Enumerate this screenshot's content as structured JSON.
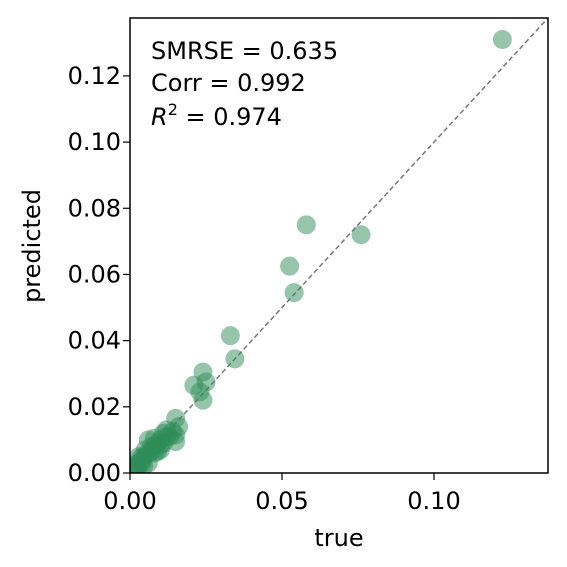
{
  "chart_data": {
    "type": "scatter",
    "xlabel": "true",
    "ylabel": "predicted",
    "xlim": [
      0,
      0.1375
    ],
    "ylim": [
      0,
      0.1375
    ],
    "x_ticks": [
      0.0,
      0.05,
      0.1
    ],
    "x_tick_labels": [
      "0.00",
      "0.05",
      "0.10"
    ],
    "y_ticks": [
      0.0,
      0.02,
      0.04,
      0.06,
      0.08,
      0.1,
      0.12
    ],
    "y_tick_labels": [
      "0.00",
      "0.02",
      "0.04",
      "0.06",
      "0.08",
      "0.10",
      "0.12"
    ],
    "grid": false,
    "reference_line": {
      "style": "dashed",
      "color": "#777777",
      "from": [
        0,
        0
      ],
      "to": [
        0.1375,
        0.1375
      ]
    },
    "point_color": "#2e8b57",
    "annotations": [
      {
        "text": "SMRSE = 0.635"
      },
      {
        "text": "Corr = 0.992"
      },
      {
        "prefix": "R",
        "superscript": "2",
        "suffix": " = 0.974"
      }
    ],
    "points": {
      "x": [
        0.1225,
        0.076,
        0.058,
        0.0525,
        0.054,
        0.033,
        0.0345,
        0.024,
        0.021,
        0.025,
        0.023,
        0.024,
        0.015,
        0.016,
        0.014,
        0.015,
        0.012,
        0.011,
        0.01,
        0.009,
        0.008,
        0.007,
        0.006,
        0.005,
        0.004,
        0.003,
        0.002,
        0.006,
        0.008,
        0.01,
        0.012,
        0.005,
        0.003,
        0.002,
        0.004,
        0.007,
        0.009,
        0.011,
        0.013,
        0.006,
        0.001,
        0.0015,
        0.0025,
        0.0035,
        0.0045,
        0.015,
        0.008,
        0.01
      ],
      "y": [
        0.131,
        0.072,
        0.075,
        0.0625,
        0.0545,
        0.0415,
        0.0345,
        0.0305,
        0.0265,
        0.0275,
        0.0245,
        0.022,
        0.0165,
        0.014,
        0.0125,
        0.0095,
        0.013,
        0.012,
        0.01,
        0.009,
        0.008,
        0.0065,
        0.006,
        0.005,
        0.004,
        0.003,
        0.002,
        0.01,
        0.006,
        0.007,
        0.011,
        0.007,
        0.005,
        0.001,
        0.003,
        0.008,
        0.0065,
        0.009,
        0.011,
        0.003,
        0.0005,
        0.0025,
        0.0015,
        0.0045,
        0.002,
        0.0115,
        0.0105,
        0.0085
      ]
    }
  }
}
